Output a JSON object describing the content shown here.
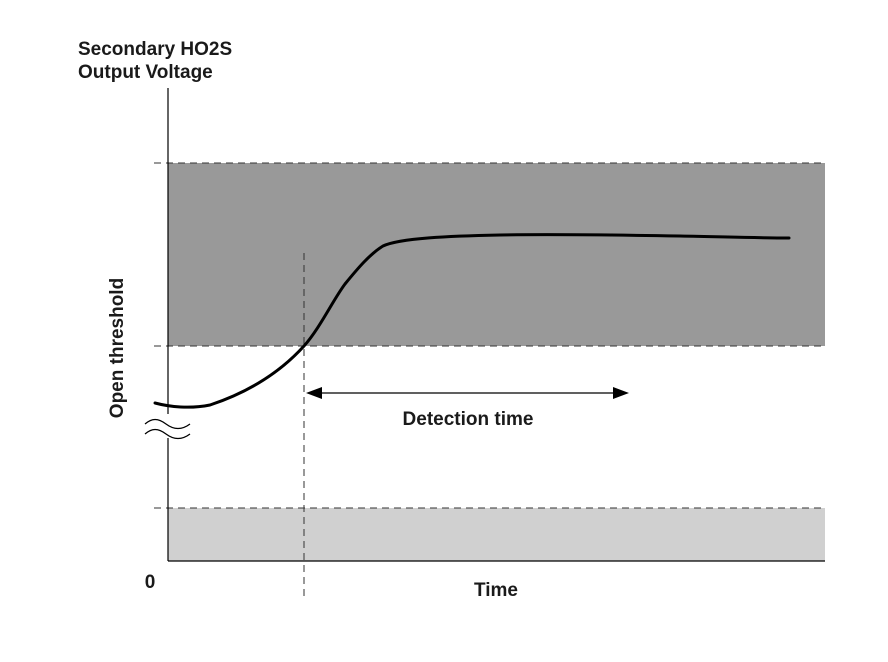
{
  "labels": {
    "y_title_line1": "Secondary HO2S",
    "y_title_line2": "Output Voltage",
    "open_threshold": "Open threshold",
    "detection_time": "Detection time",
    "x_axis": "Time",
    "origin": "0"
  },
  "colors": {
    "upper_band": "#999999",
    "lower_band": "#d0d0d0",
    "line": "#000000",
    "text": "#1a1a1a"
  }
}
